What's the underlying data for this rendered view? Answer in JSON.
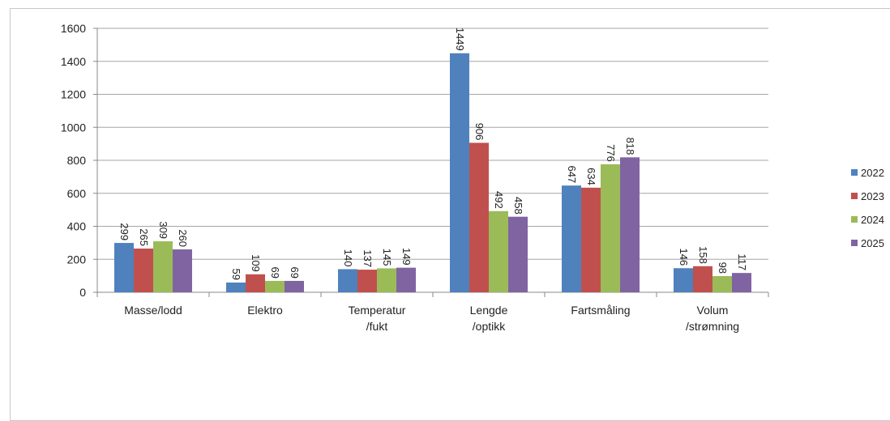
{
  "chart_data": {
    "type": "bar",
    "categories": [
      [
        "Masse/lodd"
      ],
      [
        "Elektro"
      ],
      [
        "Temperatur",
        "/fukt"
      ],
      [
        "Lengde",
        "/optikk"
      ],
      [
        "Fartsmåling"
      ],
      [
        "Volum",
        "/strømning"
      ]
    ],
    "series": [
      {
        "name": "2022",
        "color": "#4f81bd",
        "values": [
          299,
          59,
          140,
          1449,
          647,
          146
        ]
      },
      {
        "name": "2023",
        "color": "#c0504d",
        "values": [
          265,
          109,
          137,
          906,
          634,
          158
        ]
      },
      {
        "name": "2024",
        "color": "#9bbb59",
        "values": [
          309,
          69,
          145,
          492,
          776,
          98
        ]
      },
      {
        "name": "2025",
        "color": "#8064a2",
        "values": [
          260,
          69,
          149,
          458,
          818,
          117
        ]
      }
    ],
    "title": "",
    "xlabel": "",
    "ylabel": "",
    "ylim": [
      0,
      1600
    ],
    "yticks": [
      0,
      200,
      400,
      600,
      800,
      1000,
      1200,
      1400,
      1600
    ],
    "grid": true,
    "legend_position": "right",
    "data_labels_rotated": true
  }
}
